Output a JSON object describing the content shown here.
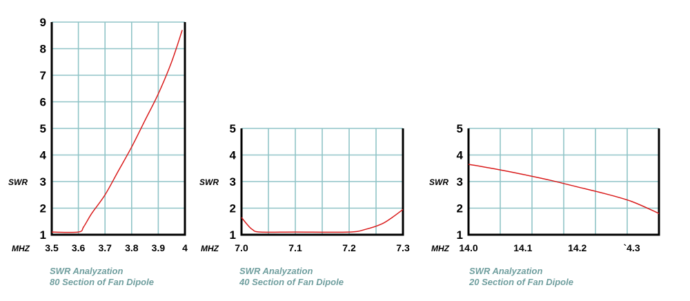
{
  "chart_data": [
    {
      "type": "line",
      "ylabel": "SWR",
      "xlabel": "MHZ",
      "caption": [
        "SWR Analyzation",
        "80 Section of Fan Dipole"
      ],
      "x_ticks": [
        "3.5",
        "3.6",
        "3.7",
        "3.8",
        "3.9",
        "4"
      ],
      "y_ticks": [
        "1",
        "2",
        "3",
        "4",
        "5",
        "6",
        "7",
        "8",
        "9"
      ],
      "xlim": [
        3.5,
        4.0
      ],
      "ylim": [
        1,
        9
      ],
      "grid": true,
      "series": [
        {
          "x": [
            3.5,
            3.6,
            3.62,
            3.65,
            3.7,
            3.75,
            3.8,
            3.85,
            3.9,
            3.95,
            3.99
          ],
          "y": [
            1.1,
            1.1,
            1.3,
            1.8,
            2.5,
            3.4,
            4.3,
            5.3,
            6.3,
            7.5,
            8.7
          ]
        }
      ]
    },
    {
      "type": "line",
      "ylabel": "SWR",
      "xlabel": "MHZ",
      "caption": [
        "SWR Analyzation",
        "40 Section of Fan Dipole"
      ],
      "x_ticks": [
        "7.0",
        "7.1",
        "7.2",
        "7.3"
      ],
      "y_ticks": [
        "1",
        "2",
        "3",
        "4",
        "5"
      ],
      "xlim": [
        7.0,
        7.3
      ],
      "ylim": [
        1,
        5
      ],
      "grid": true,
      "series": [
        {
          "x": [
            7.0,
            7.01,
            7.02,
            7.035,
            7.1,
            7.2,
            7.23,
            7.26,
            7.28,
            7.3
          ],
          "y": [
            1.65,
            1.4,
            1.2,
            1.1,
            1.1,
            1.1,
            1.2,
            1.4,
            1.65,
            1.95
          ]
        }
      ]
    },
    {
      "type": "line",
      "ylabel": "SWR",
      "xlabel": "MHZ",
      "caption": [
        "SWR Analyzation",
        "20 Section of Fan Dipole"
      ],
      "x_ticks": [
        "14.0",
        "14.1",
        "14.2",
        "`4.3"
      ],
      "y_ticks": [
        "1",
        "2",
        "3",
        "4",
        "5"
      ],
      "xlim": [
        14.0,
        14.35
      ],
      "ylim": [
        1,
        5
      ],
      "grid": true,
      "series": [
        {
          "x": [
            14.0,
            14.05,
            14.1,
            14.15,
            14.2,
            14.25,
            14.3,
            14.35
          ],
          "y": [
            3.65,
            3.47,
            3.27,
            3.05,
            2.8,
            2.55,
            2.25,
            1.8
          ]
        }
      ]
    }
  ],
  "colors": {
    "curve": "#d91a1a",
    "grid": "#8fc4c7",
    "caption": "#6f9e9e",
    "axis": "#000000"
  }
}
